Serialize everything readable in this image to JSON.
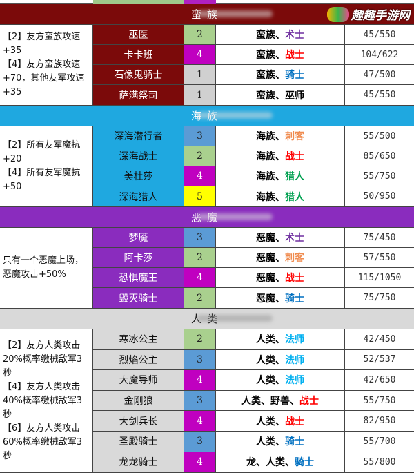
{
  "colors": {
    "barbarian": "#7b0a0a",
    "naga": "#1fa8e0",
    "demon": "#8a2cbe",
    "human": "#d9d9d9",
    "cost": {
      "1": "#d0d0d0",
      "2": "#a9d08e",
      "3": "#5b9bd5",
      "4": "#c000c0",
      "5": "#ffff00"
    },
    "classes": {
      "术士": "#7030a0",
      "战士": "#ff0000",
      "骑士": "#0070c0",
      "刺客": "#f08c50",
      "猎人": "#00a050",
      "法师": "#00b0f0",
      "巫师": "#000000"
    }
  },
  "logo": {
    "text": "趣趣手游网",
    "icon": "gamepad-logo-icon"
  },
  "sections": [
    {
      "title": "蛮族",
      "key": "barbarian",
      "desc": "【2】友方蛮族攻速+35\n【4】友方蛮族攻速+70，其他友军攻速+35",
      "units": [
        {
          "name": "巫医",
          "cost": "2",
          "race": "蛮族、",
          "cls": "术士",
          "stats": "45/550"
        },
        {
          "name": "卡卡班",
          "cost": "4",
          "race": "蛮族、",
          "cls": "战士",
          "stats": "104/622"
        },
        {
          "name": "石像鬼骑士",
          "cost": "1",
          "race": "蛮族、",
          "cls": "骑士",
          "stats": "47/500"
        },
        {
          "name": "萨满祭司",
          "cost": "1",
          "race": "蛮族、",
          "cls": "巫师",
          "stats": "45/550"
        }
      ]
    },
    {
      "title": "海族",
      "key": "naga",
      "desc": "【2】所有友军魔抗+20\n【4】所有友军魔抗+50",
      "units": [
        {
          "name": "深海潜行者",
          "cost": "3",
          "race": "海族、",
          "cls": "刺客",
          "stats": "55/500"
        },
        {
          "name": "深海战士",
          "cost": "2",
          "race": "海族、",
          "cls": "战士",
          "stats": "85/650"
        },
        {
          "name": "美杜莎",
          "cost": "4",
          "race": "海族、",
          "cls": "猎人",
          "stats": "55/750"
        },
        {
          "name": "深海猎人",
          "cost": "5",
          "race": "海族、",
          "cls": "猎人",
          "stats": "50/950"
        }
      ]
    },
    {
      "title": "恶魔",
      "key": "demon",
      "desc": "只有一个恶魔上场，恶魔攻击+50%",
      "units": [
        {
          "name": "梦魇",
          "cost": "3",
          "race": "恶魔、",
          "cls": "术士",
          "stats": "75/450"
        },
        {
          "name": "阿卡莎",
          "cost": "2",
          "race": "恶魔、",
          "cls": "刺客",
          "stats": "57/550"
        },
        {
          "name": "恐惧魔王",
          "cost": "4",
          "race": "恶魔、",
          "cls": "战士",
          "stats": "115/1050"
        },
        {
          "name": "毁灭骑士",
          "cost": "2",
          "race": "恶魔、",
          "cls": "骑士",
          "stats": "75/750"
        }
      ]
    },
    {
      "title": "人类",
      "key": "human",
      "desc": "【2】友方人类攻击20%概率缴械敌军3秒\n【4】友方人类攻击40%概率缴械敌军3秒\n【6】友方人类攻击60%概率缴械敌军3秒",
      "units": [
        {
          "name": "寒冰公主",
          "cost": "2",
          "race": "人类、",
          "cls": "法师",
          "stats": "42/450"
        },
        {
          "name": "烈焰公主",
          "cost": "3",
          "race": "人类、",
          "cls": "法师",
          "stats": "52/537"
        },
        {
          "name": "大魔导师",
          "cost": "4",
          "race": "人类、",
          "cls": "法师",
          "stats": "42/650"
        },
        {
          "name": "金刚狼",
          "cost": "3",
          "race": "人类、野兽、",
          "cls": "战士",
          "stats": "55/750"
        },
        {
          "name": "大剑兵长",
          "cost": "4",
          "race": "人类、",
          "cls": "战士",
          "stats": "82/950"
        },
        {
          "name": "圣殿骑士",
          "cost": "3",
          "race": "人类、",
          "cls": "骑士",
          "stats": "55/700"
        },
        {
          "name": "龙龙骑士",
          "cost": "4",
          "race": "龙、人类、",
          "cls": "骑士",
          "stats": "55/800"
        }
      ]
    }
  ]
}
